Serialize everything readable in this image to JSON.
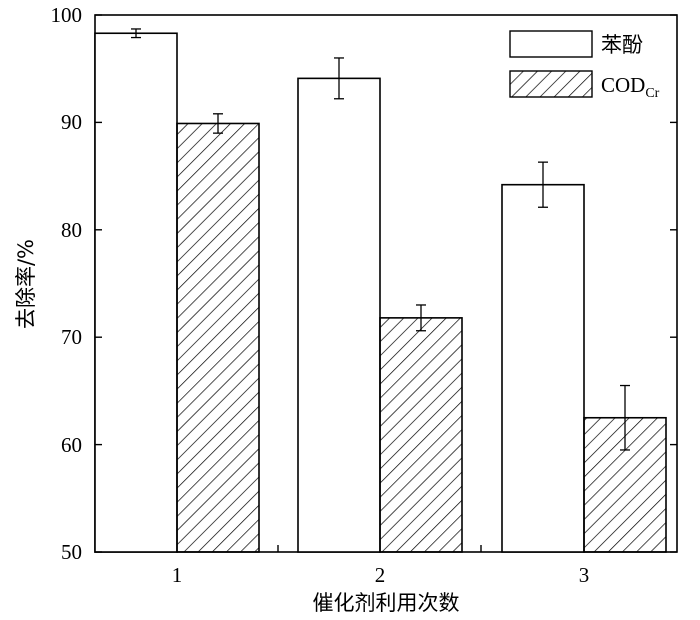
{
  "chart_data": {
    "type": "bar",
    "xlabel": "催化剂利用次数",
    "ylabel": "去除率/%",
    "categories": [
      "1",
      "2",
      "3"
    ],
    "ylim": [
      50,
      100
    ],
    "yticks": [
      50,
      60,
      70,
      80,
      90,
      100
    ],
    "legend_position": "top-right",
    "series": [
      {
        "name": "苯酚",
        "values": [
          98.3,
          94.1,
          84.2
        ],
        "errors": [
          0.4,
          1.9,
          2.1
        ],
        "fill": "#ffffff",
        "pattern": "none"
      },
      {
        "name": "CODCr",
        "name_main": "COD",
        "name_sub": "Cr",
        "values": [
          89.9,
          71.8,
          62.5
        ],
        "errors": [
          0.9,
          1.2,
          3.0
        ],
        "fill": "#ffffff",
        "pattern": "diagonal-hatch"
      }
    ]
  }
}
